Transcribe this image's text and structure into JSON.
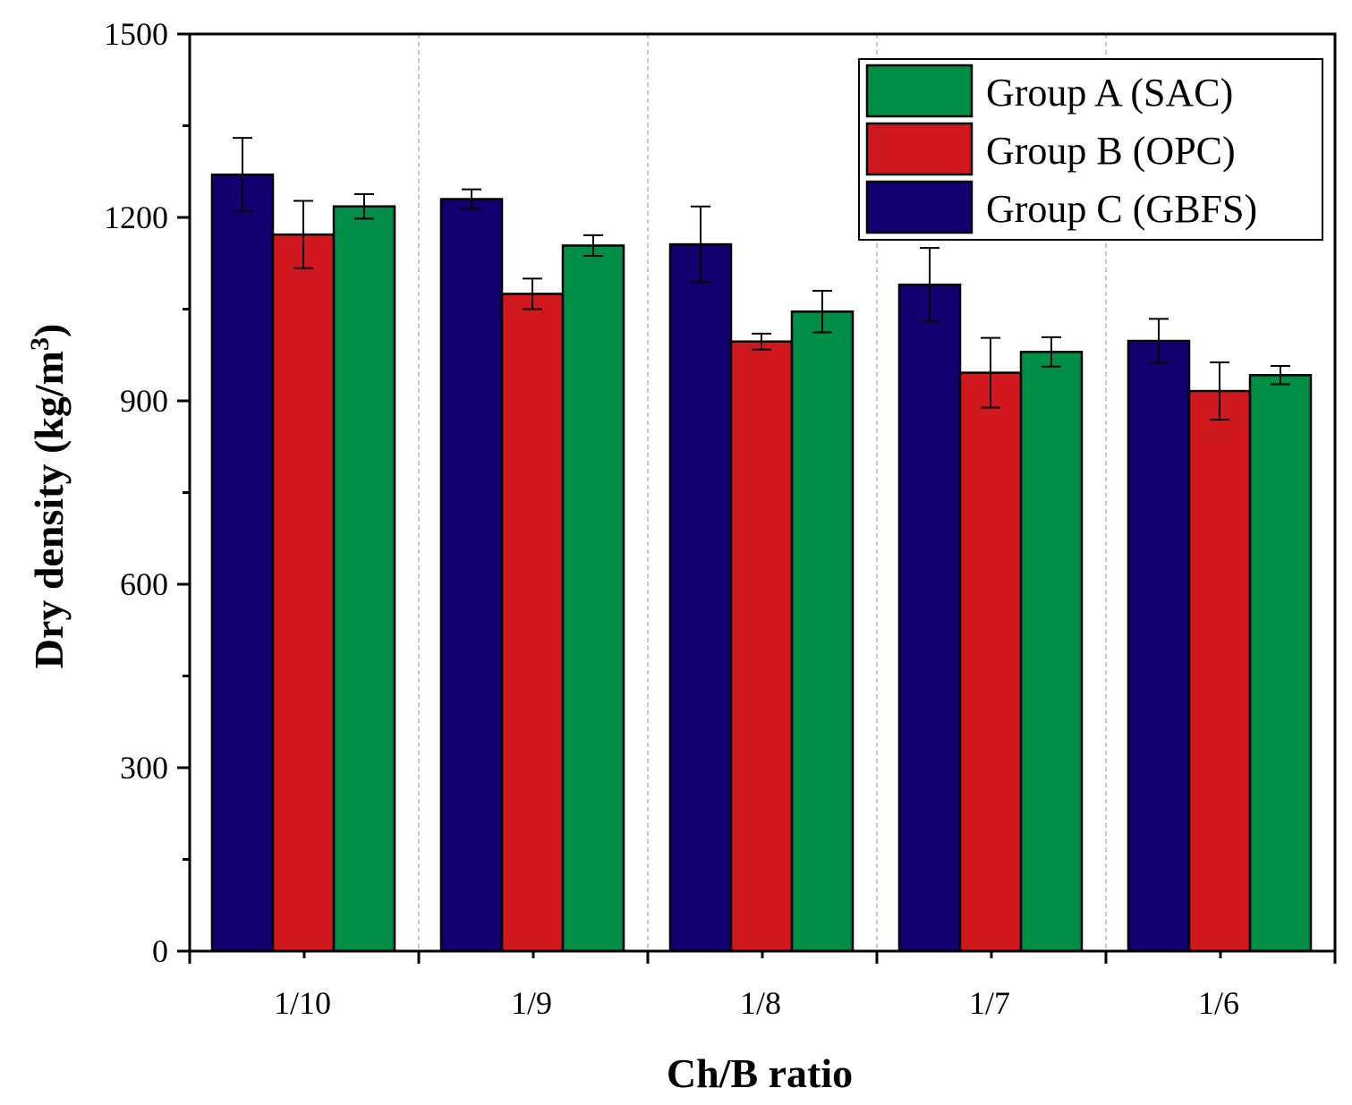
{
  "chart_data": {
    "type": "bar",
    "xlabel": "Ch/B ratio",
    "ylabel": "Dry density (kg/m",
    "ylabel_sup": "3",
    "ylabel_close": ")",
    "categories": [
      "1/10",
      "1/9",
      "1/8",
      "1/7",
      "1/6"
    ],
    "ylim": [
      0,
      1500
    ],
    "yticks": [
      0,
      300,
      600,
      900,
      1200,
      1500
    ],
    "yticks_minor": [
      150,
      450,
      750,
      1050,
      1350
    ],
    "bar_order": [
      "Group C (GBFS)",
      "Group B (OPC)",
      "Group A (SAC)"
    ],
    "series": [
      {
        "name": "Group C (GBFS)",
        "color": "#120070",
        "values": [
          1270,
          1230,
          1156,
          1090,
          998
        ],
        "errors": [
          60,
          16,
          62,
          60,
          36
        ]
      },
      {
        "name": "Group B (OPC)",
        "color": "#d0191e",
        "values": [
          1172,
          1075,
          997,
          946,
          916
        ],
        "errors": [
          55,
          25,
          13,
          57,
          47
        ]
      },
      {
        "name": "Group A (SAC)",
        "color": "#008d46",
        "values": [
          1218,
          1154,
          1046,
          980,
          942
        ],
        "errors": [
          20,
          17,
          34,
          24,
          15
        ]
      }
    ],
    "legend": {
      "position": "top-right",
      "entries": [
        "Group A (SAC)",
        "Group B (OPC)",
        "Group C (GBFS)"
      ]
    },
    "grid": "vertical dashed separators between categories"
  }
}
